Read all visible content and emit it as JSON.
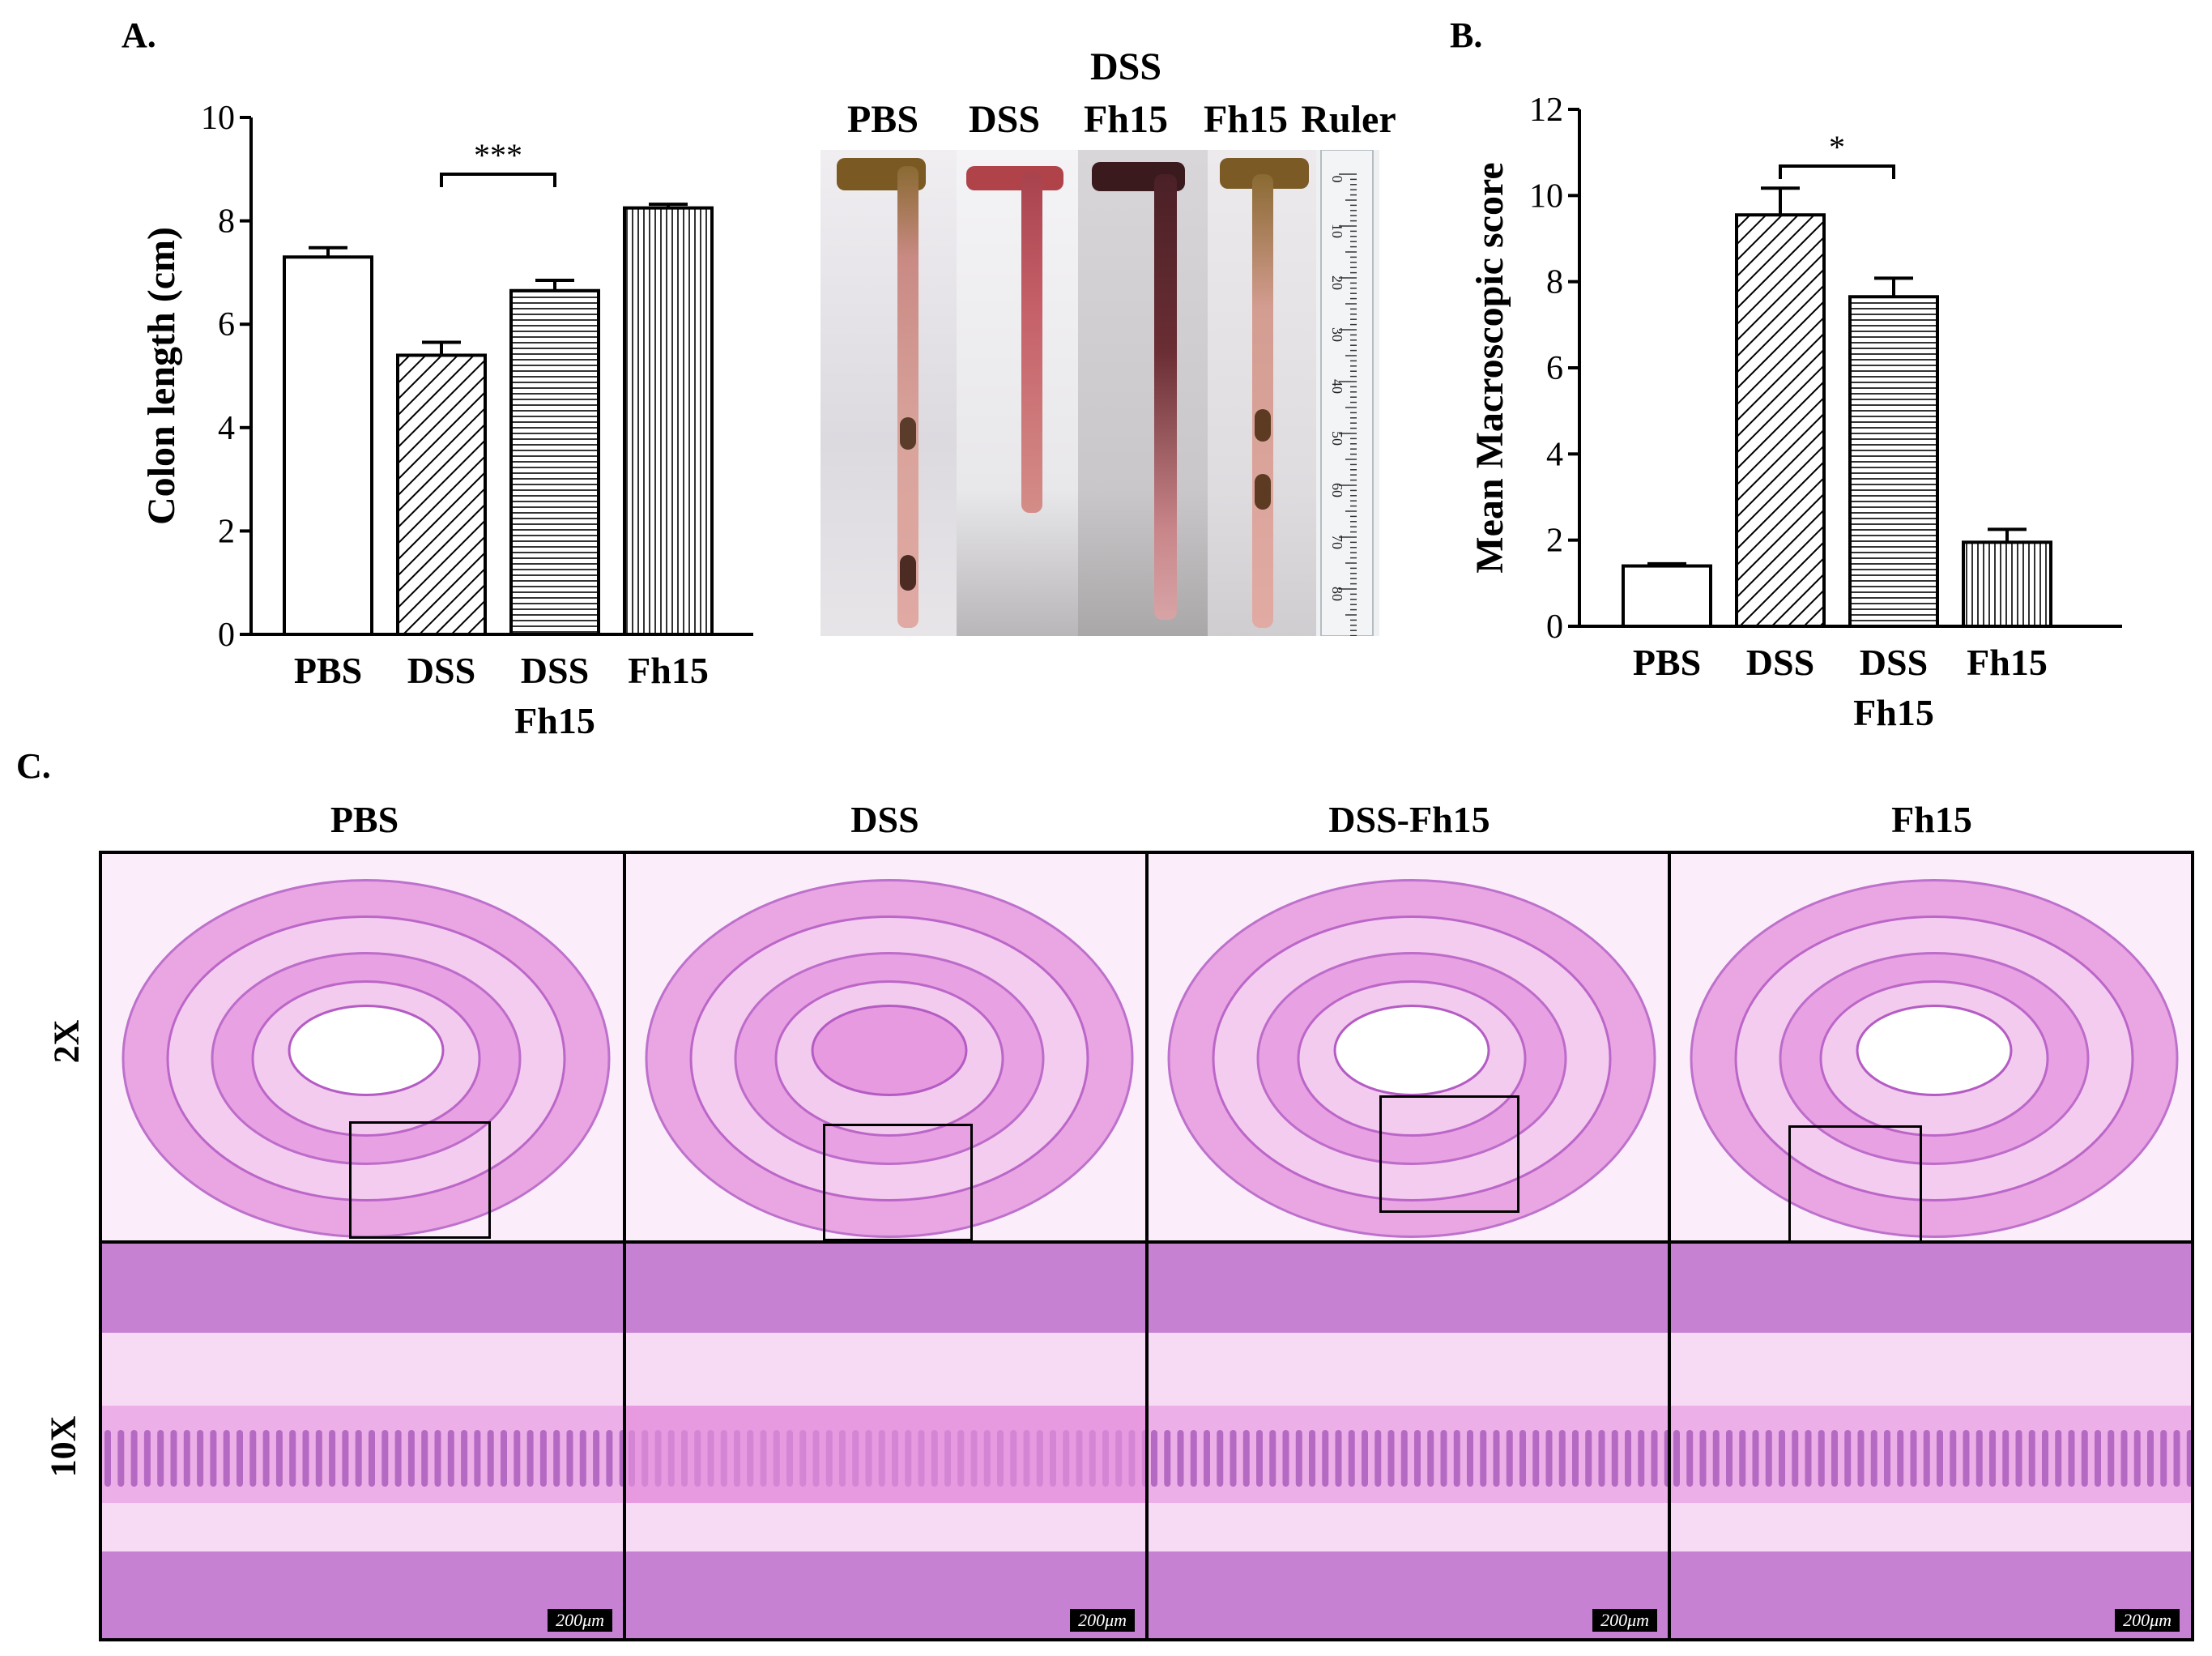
{
  "panelA": {
    "letter": "A.",
    "chart_data": {
      "type": "bar",
      "categories": [
        "PBS",
        "DSS",
        "DSS Fh15",
        "Fh15"
      ],
      "category_lines": [
        [
          "PBS"
        ],
        [
          "DSS"
        ],
        [
          "DSS",
          "Fh15"
        ],
        [
          "Fh15"
        ]
      ],
      "values": [
        7.3,
        5.4,
        6.65,
        8.25
      ],
      "errors": [
        0.18,
        0.25,
        0.2,
        0.07
      ],
      "patterns": [
        "open",
        "diagonal",
        "horizontal",
        "vertical"
      ],
      "ylabel": "Colon length (cm)",
      "ylim": [
        0,
        10
      ],
      "yticks": [
        0,
        2,
        4,
        6,
        8,
        10
      ],
      "significance": {
        "between": [
          1,
          2
        ],
        "label": "***"
      }
    },
    "photo": {
      "top_label": "DSS",
      "labels": [
        "PBS",
        "DSS",
        "Fh15",
        "Fh15",
        "Ruler"
      ],
      "ruler_ticks": [
        "0",
        "10",
        "20",
        "30",
        "40",
        "50",
        "60",
        "70",
        "80"
      ]
    }
  },
  "panelB": {
    "letter": "B.",
    "chart_data": {
      "type": "bar",
      "categories": [
        "PBS",
        "DSS",
        "DSS Fh15",
        "Fh15"
      ],
      "category_lines": [
        [
          "PBS"
        ],
        [
          "DSS"
        ],
        [
          "DSS",
          "Fh15"
        ],
        [
          "Fh15"
        ]
      ],
      "values": [
        1.4,
        9.55,
        7.65,
        1.95
      ],
      "errors": [
        0.05,
        0.62,
        0.43,
        0.3
      ],
      "patterns": [
        "open",
        "diagonal",
        "horizontal",
        "vertical"
      ],
      "ylabel": "Mean Macroscopic score",
      "ylim": [
        0,
        12
      ],
      "yticks": [
        0,
        2,
        4,
        6,
        8,
        10,
        12
      ],
      "significance": {
        "between": [
          1,
          2
        ],
        "label": "*"
      }
    }
  },
  "panelC": {
    "letter": "C.",
    "columns": [
      "PBS",
      "DSS",
      "DSS-Fh15",
      "Fh15"
    ],
    "rows": [
      "2X",
      "10X"
    ],
    "scale_label": "200μm"
  },
  "colors": {
    "tissue": "#e79ae0",
    "tissue_light": "#f6d3f2",
    "crypt": "#b45cc4",
    "ink": "#000000"
  }
}
